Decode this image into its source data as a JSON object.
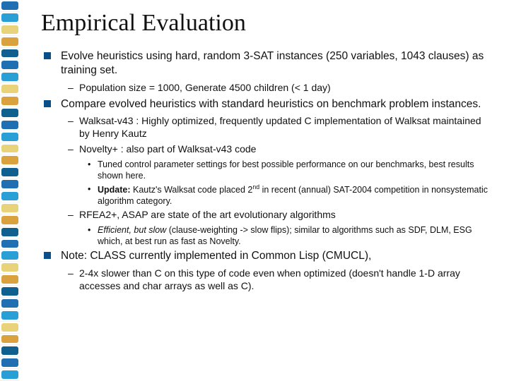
{
  "colors": {
    "bullet_square": "#0b4f8a",
    "text": "#111111",
    "background": "#ffffff",
    "spiral": [
      "#1f6fb2",
      "#2a9fd6",
      "#e8d37a",
      "#d9a23e",
      "#0f5f8f"
    ]
  },
  "fonts": {
    "title_family": "Times New Roman",
    "title_size_pt": 26,
    "body_family": "Arial",
    "body_size_pt": 12,
    "sub_size_pt": 11,
    "subsub_size_pt": 9.5
  },
  "title": "Empirical Evaluation",
  "b1": {
    "text": "Evolve heuristics using hard, random 3-SAT instances (250 variables, 1043 clauses) as training set.",
    "s1": "Population size = 1000, Generate 4500 children (< 1 day)"
  },
  "b2": {
    "text": "Compare evolved heuristics with standard heuristics on benchmark problem instances.",
    "s1": "Walksat-v43 : Highly optimized, frequently updated C implementation of Walksat maintained by Henry Kautz",
    "s2": "Novelty+ : also part of Walksat-v43 code",
    "s2a": "Tuned control parameter settings for best possible performance on our benchmarks, best results shown here.",
    "s2b_prefix": "Update:",
    "s2b_rest": " Kautz's Walksat code placed 2",
    "s2b_sup": "nd",
    "s2b_tail": " in recent (annual) SAT-2004 competition in nonsystematic algorithm category.",
    "s3": "RFEA2+, ASAP are state of the art evolutionary algorithms",
    "s3a_italic": "Efficient, but slow",
    "s3a_rest": " (clause-weighting -> slow flips); similar to algorithms such as SDF, DLM, ESG which, at best run as fast as Novelty."
  },
  "b3": {
    "text": "Note: CLASS currently implemented in Common Lisp (CMUCL),",
    "s1": "2-4x slower than C on this type of code even when optimized (doesn't handle 1-D array accesses and char arrays as well as C)."
  }
}
